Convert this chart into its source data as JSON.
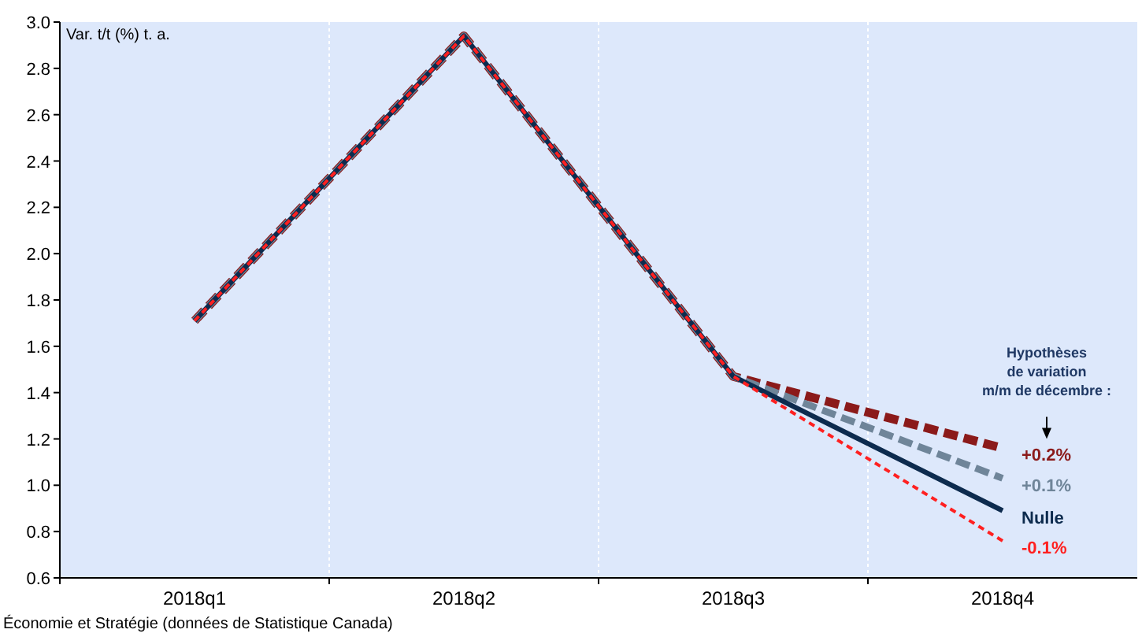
{
  "chart_data": {
    "type": "line",
    "ylabel": "Var. t/t (%) t. a.",
    "categories": [
      "2018q1",
      "2018q2",
      "2018q3",
      "2018q4"
    ],
    "series": [
      {
        "name": "+0.2%",
        "color": "#8b1a1a",
        "line_style": "dashed",
        "values": [
          1.71,
          2.94,
          1.47,
          1.16
        ]
      },
      {
        "name": "+0.1%",
        "color": "#6f8599",
        "line_style": "dashed",
        "values": [
          1.71,
          2.94,
          1.47,
          1.03
        ]
      },
      {
        "name": "Nulle",
        "color": "#0d2b4e",
        "line_style": "solid",
        "values": [
          1.71,
          2.94,
          1.47,
          0.89
        ]
      },
      {
        "name": "-0.1%",
        "color": "#ff2020",
        "line_style": "dotted",
        "values": [
          1.71,
          2.94,
          1.47,
          0.76
        ]
      }
    ],
    "ylim": [
      0.6,
      3.0
    ],
    "yticks": [
      0.6,
      0.8,
      {
        "value": 1,
        "label": "1.0"
      },
      1.2,
      1.4,
      1.6,
      1.8,
      {
        "value": 2,
        "label": "2.0"
      },
      2.2,
      2.4,
      2.6,
      2.8,
      {
        "value": 3,
        "label": "3.0"
      }
    ],
    "annotations": [
      "Hypothèses de variation m/m de décembre :",
      "Économie et Stratégie (données de Statistique Canada)"
    ]
  }
}
